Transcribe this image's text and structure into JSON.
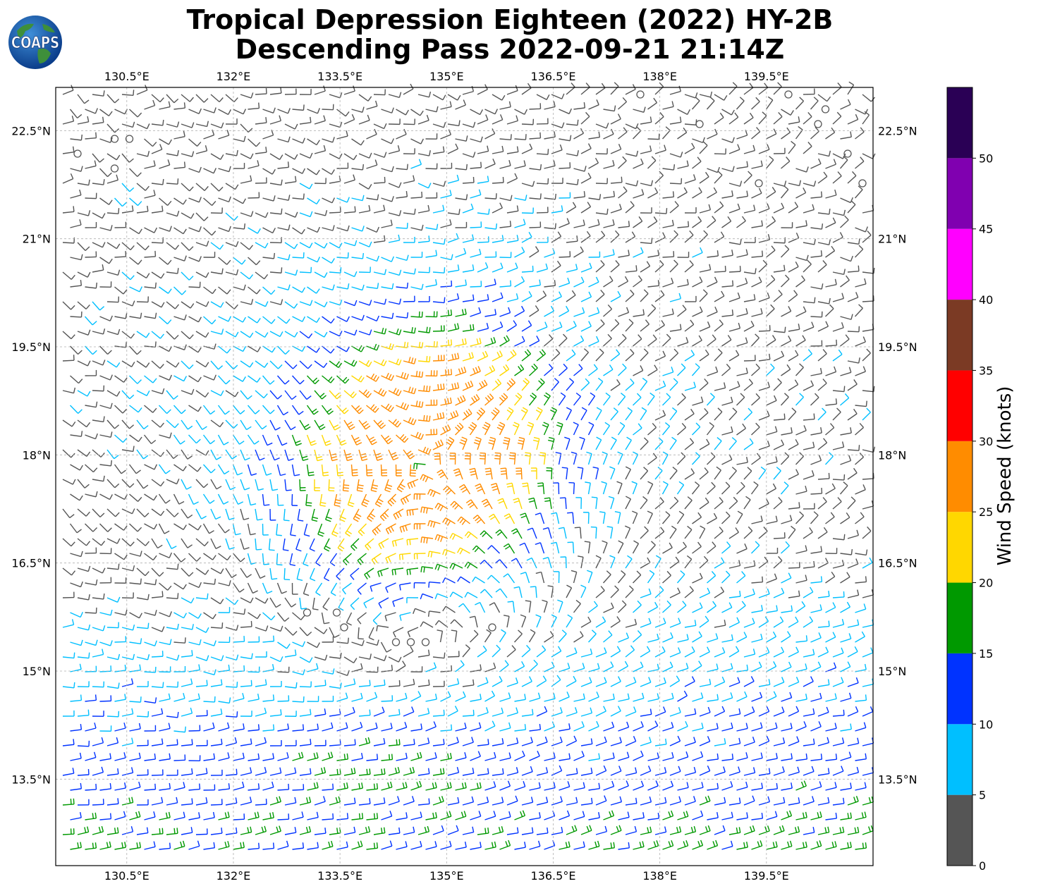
{
  "title_line1": "Tropical Depression Eighteen (2022) HY-2B",
  "title_line2": "Descending Pass 2022-09-21 21:14Z",
  "logo_text": "COAPS",
  "map": {
    "lon_range": [
      129.5,
      141.0
    ],
    "lat_range": [
      12.3,
      23.1
    ],
    "lon_ticks": [
      130.5,
      132,
      133.5,
      135,
      136.5,
      138,
      139.5
    ],
    "lon_tick_labels": [
      "130.5°E",
      "132°E",
      "133.5°E",
      "135°E",
      "136.5°E",
      "138°E",
      "139.5°E"
    ],
    "lat_ticks": [
      13.5,
      15,
      16.5,
      18,
      19.5,
      21,
      22.5
    ],
    "lat_tick_labels": [
      "13.5°N",
      "15°N",
      "16.5°N",
      "18°N",
      "19.5°N",
      "21°N",
      "22.5°N"
    ],
    "grid": true,
    "storm_center": {
      "lon": 134.7,
      "lat": 17.9
    }
  },
  "colorbar": {
    "label": "Wind Speed (knots)",
    "bounds": [
      0,
      5,
      10,
      15,
      20,
      25,
      30,
      35,
      40,
      45,
      50,
      55
    ],
    "tick_values": [
      0,
      5,
      10,
      15,
      20,
      25,
      30,
      35,
      40,
      45,
      50
    ],
    "tick_labels": [
      "0",
      "5",
      "10",
      "15",
      "20",
      "25",
      "30",
      "35",
      "40",
      "45",
      "50"
    ],
    "colors": [
      "#555555",
      "#00bfff",
      "#0033ff",
      "#009900",
      "#ffd700",
      "#ff8c00",
      "#ff0000",
      "#7b3a24",
      "#ff00ff",
      "#8000b0",
      "#2a0055"
    ]
  }
}
